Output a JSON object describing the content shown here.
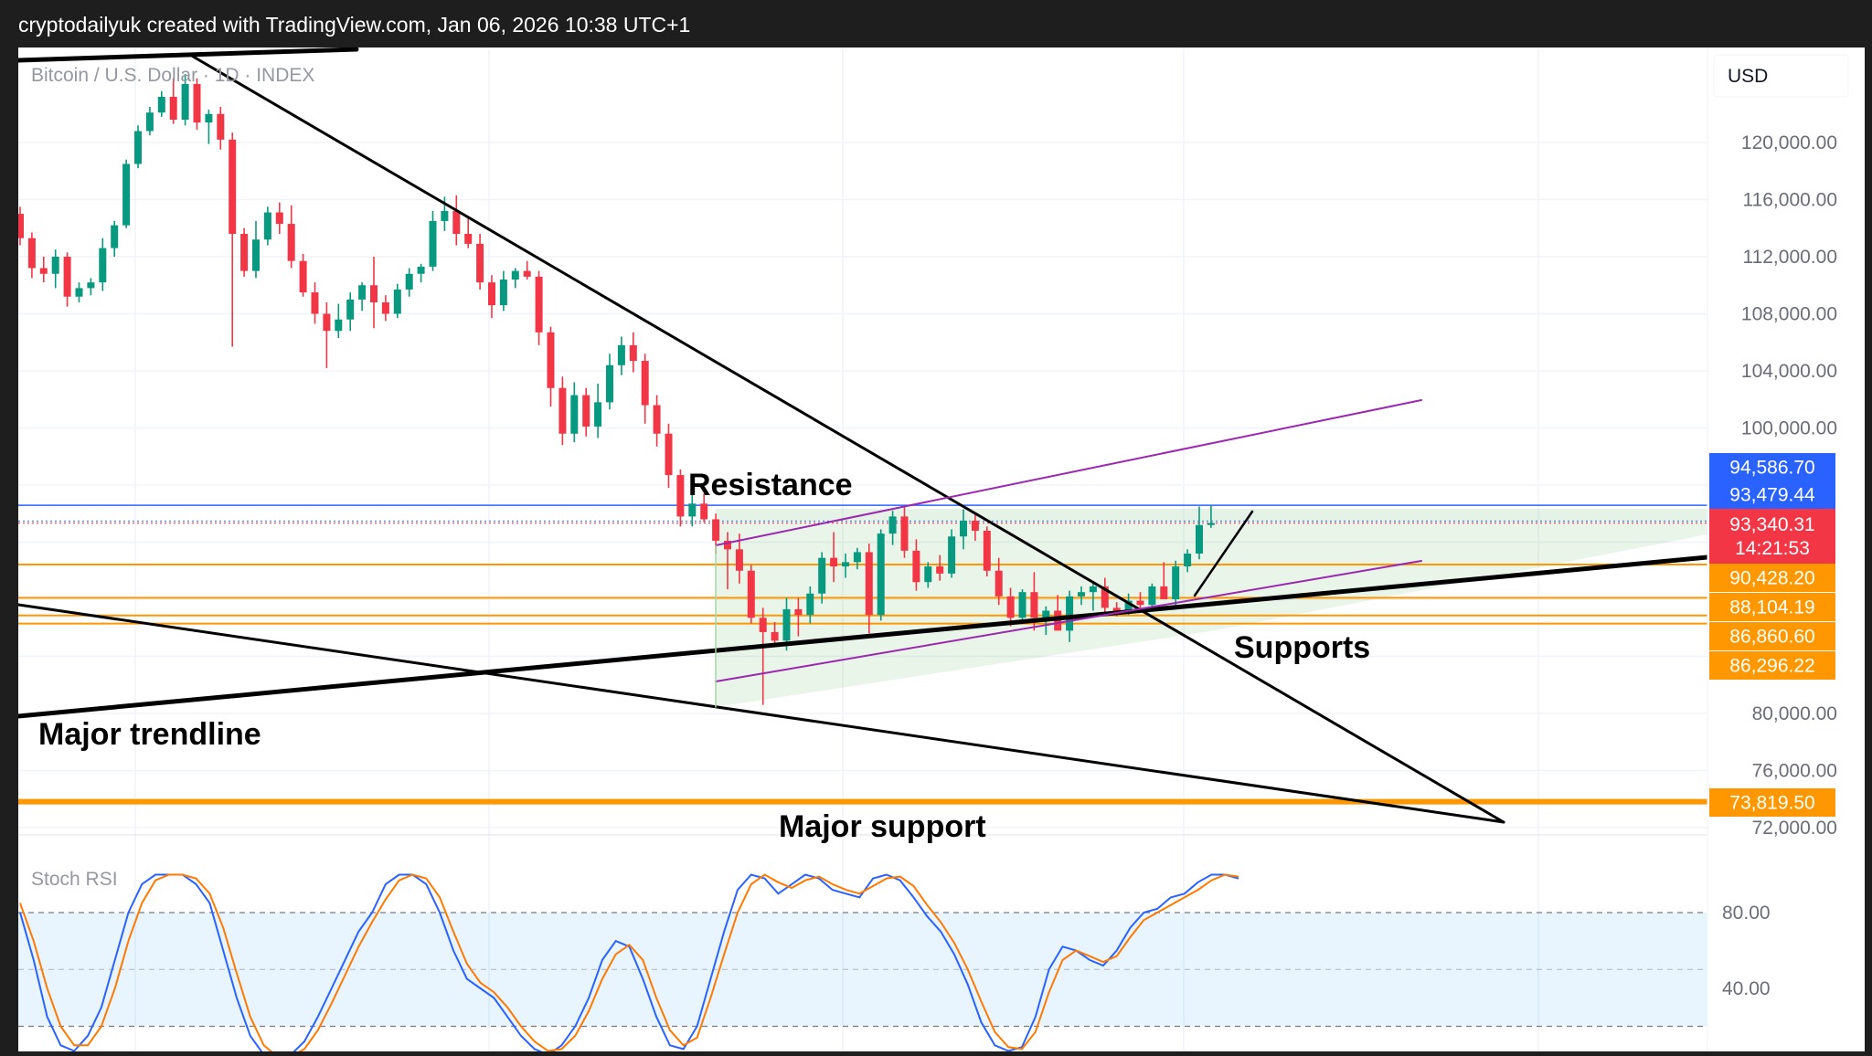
{
  "header": {
    "attribution": "cryptodailyuk created with TradingView.com, Jan 06, 2026 10:38 UTC+1"
  },
  "chart_data": [
    {
      "type": "candlestick",
      "symbol_label": "Bitcoin / U.S. Dollar · 1D · INDEX",
      "currency": "USD",
      "ylim": [
        70500,
        127000
      ],
      "y_ticks": [
        "120,000.00",
        "116,000.00",
        "112,000.00",
        "108,000.00",
        "104,000.00",
        "100,000.00",
        "80,000.00",
        "76,000.00",
        "72,000.00"
      ],
      "y_tick_values": [
        120000,
        116000,
        112000,
        108000,
        104000,
        100000,
        80000,
        76000,
        72000
      ],
      "price_labels": [
        {
          "text": "94,586.70",
          "value": 94586.7,
          "color": "#2962ff"
        },
        {
          "text": "93,479.44",
          "value": 93479.44,
          "color": "#2962ff"
        },
        {
          "text": "93,340.31",
          "value": 93340.31,
          "color": "#f23645"
        },
        {
          "text": "14:21:53",
          "value": 93340.31,
          "color": "#f23645"
        },
        {
          "text": "90,428.20",
          "value": 90428.2,
          "color": "#ff9800"
        },
        {
          "text": "88,104.19",
          "value": 88104.19,
          "color": "#ff9800"
        },
        {
          "text": "86,860.60",
          "value": 86860.6,
          "color": "#ff9800"
        },
        {
          "text": "86,296.22",
          "value": 86296.22,
          "color": "#ff9800"
        },
        {
          "text": "73,819.50",
          "value": 73819.5,
          "color": "#ff9800"
        }
      ],
      "annotations": {
        "resistance": "Resistance",
        "supports": "Supports",
        "major_trendline": "Major trendline",
        "major_support": "Major support"
      },
      "colors": {
        "up": "#089981",
        "down": "#f23645",
        "support": "#ff9800",
        "channel": "#9c27b0",
        "resistance": "#2962ff"
      },
      "candles": [
        [
          115000,
          115500,
          112800,
          113300
        ],
        [
          113300,
          113700,
          110500,
          111200
        ],
        [
          111200,
          112000,
          110200,
          110800
        ],
        [
          110800,
          112500,
          109800,
          112000
        ],
        [
          112000,
          112300,
          108500,
          109200
        ],
        [
          109200,
          110200,
          108800,
          109800
        ],
        [
          109800,
          110500,
          109300,
          110200
        ],
        [
          110200,
          113300,
          109600,
          112600
        ],
        [
          112600,
          114500,
          112000,
          114200
        ],
        [
          114200,
          118800,
          114000,
          118500
        ],
        [
          118500,
          121200,
          118200,
          120800
        ],
        [
          120800,
          122500,
          120500,
          122100
        ],
        [
          122100,
          123600,
          121800,
          123200
        ],
        [
          123200,
          124500,
          121300,
          121600
        ],
        [
          121600,
          124800,
          121200,
          124100
        ],
        [
          124100,
          124500,
          120900,
          121400
        ],
        [
          121400,
          122300,
          119900,
          122000
        ],
        [
          122000,
          122500,
          119500,
          120200
        ],
        [
          120200,
          120700,
          105700,
          113600
        ],
        [
          113600,
          114000,
          110600,
          111000
        ],
        [
          111000,
          114500,
          110500,
          113200
        ],
        [
          113200,
          115500,
          112800,
          115100
        ],
        [
          115100,
          115800,
          113600,
          114300
        ],
        [
          114300,
          115600,
          111200,
          111700
        ],
        [
          111700,
          112200,
          109200,
          109500
        ],
        [
          109500,
          110200,
          107300,
          108000
        ],
        [
          108000,
          108800,
          104200,
          106800
        ],
        [
          106800,
          108700,
          106300,
          107600
        ],
        [
          107600,
          109500,
          106800,
          109000
        ],
        [
          109000,
          110200,
          108200,
          110000
        ],
        [
          110000,
          112000,
          107000,
          108800
        ],
        [
          108800,
          109300,
          107500,
          108000
        ],
        [
          108000,
          110100,
          107700,
          109700
        ],
        [
          109700,
          111200,
          109200,
          110800
        ],
        [
          110800,
          111500,
          110200,
          111300
        ],
        [
          111300,
          115200,
          111000,
          114500
        ],
        [
          114500,
          116200,
          113800,
          115200
        ],
        [
          115200,
          116300,
          112800,
          113600
        ],
        [
          113600,
          114800,
          112600,
          112900
        ],
        [
          112900,
          113600,
          109700,
          110200
        ],
        [
          110200,
          110700,
          107700,
          108600
        ],
        [
          108600,
          111000,
          108200,
          110400
        ],
        [
          110400,
          111200,
          109800,
          111000
        ],
        [
          111000,
          111700,
          110400,
          110600
        ],
        [
          110600,
          111000,
          105800,
          106700
        ],
        [
          106700,
          107100,
          101500,
          102800
        ],
        [
          102800,
          103600,
          98800,
          99600
        ],
        [
          99600,
          103200,
          99000,
          102300
        ],
        [
          102300,
          102800,
          99400,
          100100
        ],
        [
          100100,
          103100,
          99300,
          101800
        ],
        [
          101800,
          105200,
          101300,
          104400
        ],
        [
          104400,
          106400,
          103700,
          105800
        ],
        [
          105800,
          106700,
          103900,
          104700
        ],
        [
          104700,
          105200,
          100300,
          101600
        ],
        [
          101600,
          102300,
          98700,
          99600
        ],
        [
          99600,
          100300,
          95800,
          96700
        ],
        [
          96700,
          97100,
          93100,
          93800
        ],
        [
          93800,
          95300,
          93100,
          94700
        ],
        [
          94700,
          95400,
          93400,
          93600
        ],
        [
          93600,
          94000,
          91200,
          92100
        ],
        [
          92100,
          92700,
          88700,
          91500
        ],
        [
          91500,
          92600,
          89100,
          90000
        ],
        [
          90000,
          90400,
          86300,
          86700
        ],
        [
          86700,
          87400,
          80600,
          85700
        ],
        [
          85700,
          86400,
          84700,
          85100
        ],
        [
          85100,
          88100,
          84400,
          87300
        ],
        [
          87300,
          88100,
          85400,
          86900
        ],
        [
          86900,
          88900,
          86300,
          88400
        ],
        [
          88400,
          91300,
          87700,
          90900
        ],
        [
          90900,
          92700,
          89200,
          90300
        ],
        [
          90300,
          91200,
          89500,
          90600
        ],
        [
          90600,
          91600,
          90100,
          91300
        ],
        [
          91300,
          91900,
          85600,
          86900
        ],
        [
          86900,
          92900,
          86500,
          92600
        ],
        [
          92600,
          94200,
          91800,
          93800
        ],
        [
          93800,
          94500,
          90900,
          91400
        ],
        [
          91400,
          92200,
          88600,
          89200
        ],
        [
          89200,
          90600,
          88800,
          90300
        ],
        [
          90300,
          91100,
          89300,
          89800
        ],
        [
          89800,
          92900,
          89500,
          92400
        ],
        [
          92400,
          94300,
          91500,
          93500
        ],
        [
          93500,
          94000,
          92100,
          92800
        ],
        [
          92800,
          93100,
          89600,
          90000
        ],
        [
          90000,
          90900,
          87600,
          88200
        ],
        [
          88200,
          88800,
          86100,
          86700
        ],
        [
          86700,
          88700,
          86400,
          88500
        ],
        [
          88500,
          89900,
          85800,
          86700
        ],
        [
          86700,
          87500,
          85500,
          87200
        ],
        [
          87200,
          88300,
          86300,
          85800
        ],
        [
          85800,
          88600,
          85000,
          88200
        ],
        [
          88200,
          88900,
          87600,
          88500
        ],
        [
          88500,
          89100,
          87200,
          88900
        ],
        [
          88900,
          89500,
          86900,
          87400
        ],
        [
          87400,
          87800,
          86800,
          87100
        ],
        [
          87100,
          88400,
          86900,
          87900
        ],
        [
          87900,
          88500,
          87200,
          87600
        ],
        [
          87600,
          89100,
          87300,
          88900
        ],
        [
          88900,
          90600,
          88200,
          88000
        ],
        [
          88000,
          90700,
          87600,
          90300
        ],
        [
          90300,
          91500,
          89900,
          91200
        ],
        [
          91200,
          94500,
          90800,
          93200
        ],
        [
          93200,
          94600,
          93000,
          93340.31
        ]
      ]
    },
    {
      "type": "line",
      "title": "Stoch RSI",
      "ylim": [
        0,
        100
      ],
      "y_ticks": [
        "80.00",
        "40.00"
      ],
      "y_tick_values": [
        80,
        40
      ],
      "band": [
        20,
        80
      ],
      "series": [
        {
          "color": "#2962ff",
          "values": [
            80,
            55,
            25,
            10,
            7,
            15,
            30,
            55,
            80,
            95,
            100,
            100,
            100,
            95,
            85,
            60,
            35,
            15,
            5,
            3,
            5,
            12,
            25,
            40,
            55,
            70,
            80,
            95,
            100,
            100,
            95,
            80,
            60,
            45,
            40,
            35,
            25,
            15,
            8,
            5,
            10,
            20,
            35,
            55,
            65,
            62,
            45,
            25,
            10,
            8,
            20,
            45,
            70,
            92,
            100,
            98,
            90,
            95,
            100,
            98,
            92,
            90,
            88,
            98,
            100,
            97,
            88,
            78,
            70,
            58,
            42,
            22,
            10,
            7,
            9,
            25,
            50,
            62,
            60,
            55,
            52,
            60,
            72,
            80,
            82,
            88,
            90,
            96,
            100,
            100,
            98
          ]
        },
        {
          "color": "#ff7a00",
          "values": [
            85,
            65,
            40,
            20,
            10,
            10,
            20,
            40,
            65,
            85,
            97,
            100,
            100,
            98,
            90,
            72,
            48,
            25,
            10,
            4,
            4,
            8,
            18,
            32,
            47,
            62,
            75,
            87,
            97,
            100,
            98,
            88,
            70,
            53,
            43,
            38,
            30,
            20,
            12,
            7,
            8,
            15,
            28,
            45,
            58,
            63,
            55,
            35,
            18,
            10,
            14,
            35,
            58,
            80,
            95,
            100,
            96,
            93,
            97,
            99,
            95,
            92,
            90,
            94,
            98,
            99,
            94,
            84,
            75,
            64,
            50,
            33,
            17,
            9,
            8,
            17,
            38,
            55,
            60,
            57,
            54,
            57,
            67,
            76,
            80,
            84,
            88,
            92,
            97,
            100,
            99
          ]
        }
      ]
    }
  ]
}
